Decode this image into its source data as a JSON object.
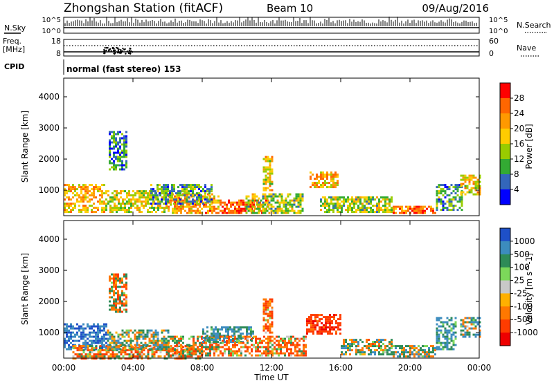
{
  "header": {
    "station": "Zhongshan Station (fitACF)",
    "beam": "Beam 10",
    "date": "09/Aug/2016"
  },
  "status_panel": {
    "nsky_label": "N.Sky",
    "nsky_ticks": [
      "10^5",
      "10^0"
    ],
    "nsearch_label": "N.Search",
    "nsearch_ticks": [
      "10^5",
      "10^0"
    ],
    "freq_label_1": "Freq.",
    "freq_label_2": "[MHz]",
    "freq_ticks": [
      "18",
      "8"
    ],
    "nave_label": "Nave",
    "nave_ticks": [
      "60",
      "0"
    ],
    "cpid_label": "CPID",
    "cpid_text": "normal (fast stereo) 153"
  },
  "x_axis": {
    "label": "Time UT",
    "ticks": [
      "00:00",
      "04:00",
      "08:00",
      "12:00",
      "16:00",
      "20:00",
      "00:00"
    ]
  },
  "power_colorbar": {
    "label": "Power [dB]",
    "ticks": [
      "28",
      "24",
      "20",
      "16",
      "12",
      "8",
      "4"
    ],
    "colors": [
      "#ff0000",
      "#ff6600",
      "#ff9900",
      "#ffcc00",
      "#99cc00",
      "#33aa33",
      "#3366bb",
      "#0000ff"
    ]
  },
  "velocity_colorbar": {
    "label": "Velocity [m s^-1]",
    "ticks": [
      "1000",
      "500",
      "100",
      "25",
      "-25",
      "-100",
      "-500",
      "-1000"
    ],
    "colors": [
      "#1e50c8",
      "#3c8cbe",
      "#2e8b57",
      "#7cd85a",
      "#c8c8c8",
      "#ffb000",
      "#ff7800",
      "#ff3c00",
      "#ee0000"
    ]
  },
  "chart_data": [
    {
      "type": "heatmap",
      "panel": "power",
      "xlabel": "Time UT",
      "ylabel": "Slant Range [km]",
      "xlim_hours": [
        0,
        24
      ],
      "ylim_km": [
        180,
        4600
      ],
      "yticks": [
        "1000",
        "2000",
        "3000",
        "4000"
      ],
      "colorbar_label": "Power [dB]",
      "colorbar_range": [
        0,
        32
      ],
      "blobs": [
        {
          "t0": 0.0,
          "t1": 2.4,
          "r0": 300,
          "r1": 1200,
          "value": 20
        },
        {
          "t0": 2.4,
          "t1": 6.0,
          "r0": 300,
          "r1": 1000,
          "value": 16
        },
        {
          "t0": 6.0,
          "t1": 9.0,
          "r0": 300,
          "r1": 900,
          "value": 22
        },
        {
          "t0": 9.0,
          "t1": 11.8,
          "r0": 250,
          "r1": 700,
          "value": 27
        },
        {
          "t0": 10.5,
          "t1": 13.8,
          "r0": 300,
          "r1": 900,
          "value": 14
        },
        {
          "t0": 11.5,
          "t1": 12.0,
          "r0": 1000,
          "r1": 2100,
          "value": 18
        },
        {
          "t0": 14.2,
          "t1": 15.8,
          "r0": 1100,
          "r1": 1600,
          "value": 21
        },
        {
          "t0": 14.8,
          "t1": 19.0,
          "r0": 300,
          "r1": 800,
          "value": 14
        },
        {
          "t0": 19.0,
          "t1": 21.5,
          "r0": 280,
          "r1": 500,
          "value": 26
        },
        {
          "t0": 21.5,
          "t1": 23.0,
          "r0": 400,
          "r1": 1200,
          "value": 10
        },
        {
          "t0": 22.9,
          "t1": 24.0,
          "r0": 900,
          "r1": 1500,
          "value": 18
        },
        {
          "t0": 2.6,
          "t1": 3.6,
          "r0": 1700,
          "r1": 2900,
          "value": 8
        },
        {
          "t0": 5.0,
          "t1": 8.5,
          "r0": 600,
          "r1": 1200,
          "value": 10
        }
      ]
    },
    {
      "type": "heatmap",
      "panel": "velocity",
      "xlabel": "Time UT",
      "ylabel": "Slant Range [km]",
      "xlim_hours": [
        0,
        24
      ],
      "ylim_km": [
        180,
        4600
      ],
      "yticks": [
        "1000",
        "2000",
        "3000",
        "4000"
      ],
      "colorbar_label": "Velocity [m s^-1]",
      "colorbar_range": [
        -1200,
        1200
      ],
      "blobs": [
        {
          "t0": 0.0,
          "t1": 2.5,
          "r0": 500,
          "r1": 1300,
          "value": 700
        },
        {
          "t0": 0.5,
          "t1": 8.0,
          "r0": 200,
          "r1": 600,
          "value": -150
        },
        {
          "t0": 2.5,
          "t1": 6.0,
          "r0": 500,
          "r1": 1100,
          "value": 120
        },
        {
          "t0": 6.0,
          "t1": 9.0,
          "r0": 250,
          "r1": 900,
          "value": -80
        },
        {
          "t0": 8.0,
          "t1": 11.0,
          "r0": 700,
          "r1": 1200,
          "value": 400
        },
        {
          "t0": 9.0,
          "t1": 14.0,
          "r0": 250,
          "r1": 900,
          "value": -200
        },
        {
          "t0": 11.5,
          "t1": 12.0,
          "r0": 1000,
          "r1": 2100,
          "value": -300
        },
        {
          "t0": 14.0,
          "t1": 16.0,
          "r0": 1000,
          "r1": 1600,
          "value": -600
        },
        {
          "t0": 16.0,
          "t1": 19.0,
          "r0": 300,
          "r1": 800,
          "value": 30
        },
        {
          "t0": 19.0,
          "t1": 21.5,
          "r0": 250,
          "r1": 600,
          "value": 90
        },
        {
          "t0": 21.5,
          "t1": 22.7,
          "r0": 500,
          "r1": 1500,
          "value": 350
        },
        {
          "t0": 22.9,
          "t1": 24.0,
          "r0": 900,
          "r1": 1500,
          "value": 150
        },
        {
          "t0": 2.6,
          "t1": 3.6,
          "r0": 1700,
          "r1": 2900,
          "value": -100
        }
      ]
    }
  ]
}
